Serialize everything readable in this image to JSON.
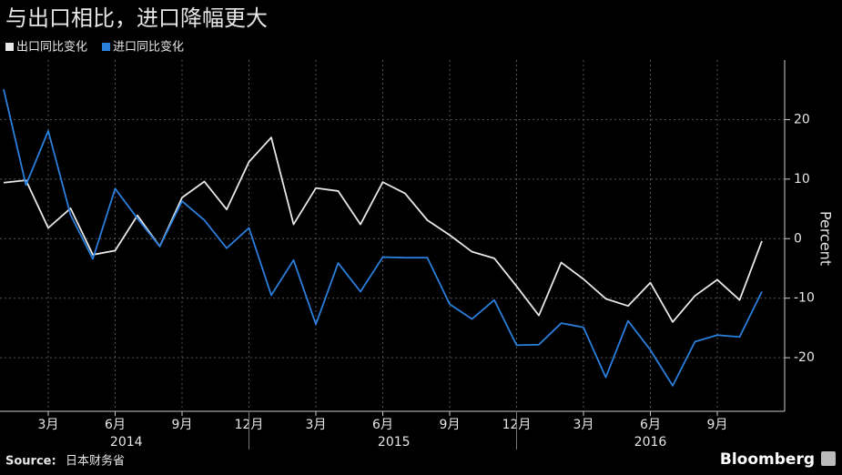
{
  "chart_data": {
    "type": "line",
    "title": "与出口相比，进口降幅更大",
    "y_label": "Percent",
    "source_label": "Source:",
    "source": "日本财务省",
    "brand": "Bloomberg",
    "categories": [
      null,
      null,
      "3月",
      null,
      null,
      "6月",
      null,
      null,
      "9月",
      null,
      null,
      "12月",
      null,
      null,
      "3月",
      null,
      null,
      "6月",
      null,
      null,
      "9月",
      null,
      null,
      "12月",
      null,
      null,
      "3月",
      null,
      null,
      "6月",
      null,
      null,
      "9月",
      null,
      null
    ],
    "years": [
      "2014",
      "2015",
      "2016"
    ],
    "series": [
      {
        "name": "出口同比变化",
        "color": "#e8e8e8",
        "values": [
          9.4,
          9.8,
          1.8,
          5.1,
          -2.7,
          -2.0,
          3.9,
          -1.3,
          6.9,
          9.6,
          4.9,
          12.9,
          17.0,
          2.4,
          8.5,
          8.0,
          2.4,
          9.5,
          7.6,
          3.1,
          0.6,
          -2.2,
          -3.3,
          -8.0,
          -12.9,
          -4.0,
          -6.8,
          -10.1,
          -11.3,
          -7.4,
          -14.0,
          -9.6,
          -6.9,
          -10.3,
          -0.4
        ]
      },
      {
        "name": "进口同比变化",
        "color": "#2a7fdc",
        "values": [
          25.1,
          9.0,
          18.1,
          4.0,
          -3.4,
          8.4,
          3.4,
          -1.3,
          6.3,
          3.1,
          -1.6,
          1.8,
          -9.5,
          -3.6,
          -14.4,
          -4.1,
          -8.9,
          -3.1,
          -3.2,
          -3.2,
          -11.0,
          -13.5,
          -10.3,
          -17.9,
          -17.8,
          -14.2,
          -14.9,
          -23.3,
          -13.8,
          -18.7,
          -24.7,
          -17.3,
          -16.2,
          -16.5,
          -8.9
        ]
      }
    ],
    "ylim": [
      -29,
      30
    ],
    "yticks": [
      -20,
      -10,
      0,
      10,
      20
    ],
    "grid": true
  }
}
